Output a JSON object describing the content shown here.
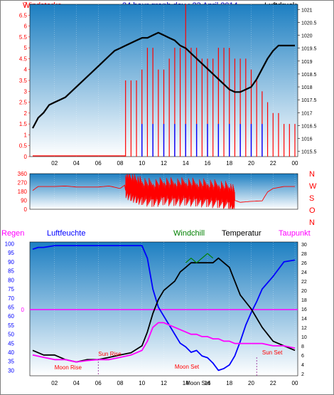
{
  "title": "24 hour graph day : 23 April 2014",
  "colors": {
    "plot_top": "#2a86c6",
    "plot_bottom": "#ffffff",
    "wind": "#ff0000",
    "gust": "#0000ff",
    "pressure": "#000000",
    "humidity": "#0000ff",
    "temperature": "#000000",
    "windchill": "#008000",
    "dewpoint": "#ff00ff",
    "rain": "#ff00ff",
    "axis_left_top": "#ff0000",
    "axis_humidity": "#0000ff",
    "axis_temp": "#000000"
  },
  "chart_data": [
    {
      "type": "line",
      "name_left": "Windstarke",
      "name_right": "Luftdruck",
      "x_ticks": [
        "02",
        "04",
        "06",
        "08",
        "10",
        "12",
        "14",
        "16",
        "18",
        "20",
        "22",
        "00"
      ],
      "y_left_ticks": [
        "7",
        "6.5",
        "6",
        "5.5",
        "5",
        "4.5",
        "4",
        "3.5",
        "3",
        "2.5",
        "2",
        "1.5",
        "1",
        "0.5",
        "0"
      ],
      "y_left_range": [
        0,
        7
      ],
      "y_right_ticks": [
        "1021",
        "1020.5",
        "1020",
        "1019.5",
        "1019",
        "1018.5",
        "1018",
        "1017.5",
        "1017",
        "1016.5",
        "1016",
        "1015.5"
      ],
      "y_right_range": [
        1015.3,
        1021.2
      ],
      "series": [
        {
          "name": "Luftdruck",
          "axis": "right",
          "x": [
            0,
            0.5,
            1,
            1.5,
            2,
            2.5,
            3,
            3.5,
            4,
            4.5,
            5,
            5.5,
            6,
            6.5,
            7,
            7.5,
            8,
            8.5,
            9,
            9.5,
            10,
            10.5,
            11,
            11.5,
            12,
            12.5,
            13,
            13.5,
            14,
            14.5,
            15,
            15.5,
            16,
            16.5,
            17,
            17.5,
            18,
            18.5,
            19,
            19.5,
            20,
            20.5,
            21,
            21.5,
            22,
            22.5,
            23,
            23.5,
            24
          ],
          "y": [
            1016.4,
            1016.8,
            1017.0,
            1017.3,
            1017.4,
            1017.5,
            1017.6,
            1017.8,
            1018.0,
            1018.2,
            1018.4,
            1018.6,
            1018.8,
            1019.0,
            1019.2,
            1019.4,
            1019.5,
            1019.6,
            1019.7,
            1019.8,
            1019.9,
            1019.9,
            1020.0,
            1020.1,
            1020.0,
            1019.9,
            1019.8,
            1019.6,
            1019.5,
            1019.3,
            1019.1,
            1018.9,
            1018.7,
            1018.5,
            1018.3,
            1018.1,
            1017.9,
            1017.8,
            1017.8,
            1017.9,
            1018.0,
            1018.3,
            1018.7,
            1019.1,
            1019.4,
            1019.6,
            1019.6,
            1019.6,
            1019.6
          ]
        },
        {
          "name": "Windstarke",
          "axis": "left",
          "style": "bars",
          "x": [
            0,
            4,
            8,
            8.5,
            9,
            9.5,
            10,
            10.5,
            11,
            11.5,
            12,
            12.5,
            13,
            13.5,
            14,
            14.5,
            15,
            15.5,
            16,
            16.5,
            17,
            17.5,
            18,
            18.5,
            19,
            19.5,
            20,
            20.5,
            21,
            21.5,
            22,
            22.5,
            23,
            23.5,
            24
          ],
          "y": [
            0,
            0,
            0,
            3.5,
            3.5,
            3.5,
            4,
            5,
            5,
            4,
            4,
            4.5,
            5,
            5,
            7,
            5,
            5,
            4.5,
            4.5,
            4.5,
            5,
            5,
            5,
            4.5,
            4.5,
            4.5,
            4,
            3.5,
            3,
            2.5,
            2,
            2,
            1.5,
            1.5,
            1.5
          ]
        },
        {
          "name": "Gust",
          "axis": "left",
          "style": "bars",
          "x": [
            10,
            11,
            12,
            13,
            14,
            15,
            16,
            17,
            18,
            19,
            20,
            21
          ],
          "y": [
            1.5,
            1.5,
            1.5,
            1.5,
            1.5,
            1.5,
            1.5,
            1.5,
            1.5,
            1.5,
            1.5,
            1.5
          ]
        }
      ]
    },
    {
      "type": "line",
      "name": "Wind direction",
      "y_ticks": [
        "360",
        "270",
        "180",
        "90",
        "0"
      ],
      "y_range": [
        0,
        360
      ],
      "compass": [
        "N",
        "W",
        "S",
        "O",
        "N"
      ],
      "series": [
        {
          "name": "Direction",
          "x": [
            0,
            0.5,
            1,
            2,
            3,
            4,
            5,
            6,
            7,
            8,
            8.5,
            9,
            9.5,
            10,
            11,
            12,
            13,
            14,
            15,
            16,
            17,
            18,
            18.5,
            19,
            20,
            21,
            21.5,
            22,
            23,
            24
          ],
          "y": [
            190,
            230,
            230,
            230,
            235,
            225,
            225,
            225,
            235,
            210,
            250,
            220,
            200,
            180,
            160,
            180,
            170,
            175,
            165,
            160,
            150,
            130,
            90,
            70,
            80,
            85,
            175,
            210,
            230,
            230
          ]
        }
      ]
    },
    {
      "type": "line",
      "names_top": [
        "Regen",
        "Luftfeuchte",
        "Windchill",
        "Temperatur",
        "Taupunkt"
      ],
      "y_humidity_ticks": [
        "100",
        "95",
        "90",
        "85",
        "80",
        "75",
        "70",
        "65",
        "60",
        "55",
        "50",
        "45",
        "40",
        "35",
        "30"
      ],
      "y_humidity_range": [
        27,
        101
      ],
      "y_temp_ticks": [
        "30",
        "28",
        "26",
        "24",
        "22",
        "20",
        "18",
        "16",
        "14",
        "12",
        "10",
        "8",
        "6",
        "4",
        "2"
      ],
      "y_temp_range": [
        1.5,
        30.5
      ],
      "rain_marker": "0",
      "annotations": [
        "Sun Rise",
        "Moon Rise",
        "Moon Set",
        "Sun Set",
        "Moon Set"
      ],
      "series": [
        {
          "name": "Luftfeuchte",
          "axis": "humidity",
          "x": [
            0,
            0.5,
            1,
            2,
            3,
            4,
            5,
            6,
            7,
            8,
            9,
            10,
            10.5,
            11,
            11.5,
            12,
            12.5,
            13,
            13.5,
            14,
            14.5,
            15,
            15.5,
            16,
            16.5,
            17,
            17.5,
            18,
            18.5,
            19,
            19.5,
            20,
            20.5,
            21,
            22,
            23,
            24
          ],
          "y": [
            97,
            98,
            98,
            99,
            99,
            99,
            99,
            99,
            99,
            99,
            99,
            99,
            92,
            75,
            65,
            60,
            55,
            50,
            45,
            43,
            40,
            41,
            38,
            37,
            34,
            30,
            31,
            33,
            38,
            46,
            55,
            62,
            68,
            75,
            82,
            90,
            91
          ]
        },
        {
          "name": "Temperatur",
          "axis": "temp",
          "x": [
            0,
            1,
            2,
            3,
            4,
            5,
            6,
            7,
            8,
            9,
            10,
            10.5,
            11,
            11.5,
            12,
            12.5,
            13,
            13.5,
            14,
            14.5,
            15,
            15.5,
            16,
            16.5,
            17,
            17.5,
            18,
            18.5,
            19,
            20,
            21,
            22,
            23,
            24
          ],
          "y": [
            7,
            6,
            6,
            5,
            4.5,
            5,
            5,
            5.5,
            6,
            6.5,
            8,
            11,
            15,
            18,
            20,
            21,
            22,
            24,
            25,
            26,
            26,
            26,
            26,
            26,
            27,
            26,
            25,
            22,
            19,
            16,
            12,
            9,
            8,
            7
          ]
        },
        {
          "name": "Taupunkt",
          "axis": "temp",
          "x": [
            0,
            1,
            2,
            3,
            4,
            5,
            6,
            7,
            8,
            9,
            10,
            10.5,
            11,
            11.5,
            12,
            12.5,
            13,
            13.5,
            14,
            14.5,
            15,
            15.5,
            16,
            16.5,
            17,
            17.5,
            18,
            18.5,
            19,
            20,
            21,
            22,
            23,
            24
          ],
          "y": [
            6,
            5.5,
            5,
            5,
            4.5,
            4.8,
            5,
            5,
            5.5,
            6,
            7,
            9,
            12,
            13,
            13,
            12.5,
            12,
            11.5,
            11,
            10.5,
            10.5,
            10,
            10,
            9.5,
            9.5,
            9,
            9,
            8.5,
            8.5,
            8.5,
            8.5,
            8,
            8,
            7.5
          ]
        },
        {
          "name": "Windchill",
          "axis": "temp",
          "x": [
            14,
            14.5,
            15,
            15.5,
            16,
            16.5
          ],
          "y": [
            26,
            27,
            26,
            27,
            28,
            27
          ]
        }
      ]
    }
  ]
}
